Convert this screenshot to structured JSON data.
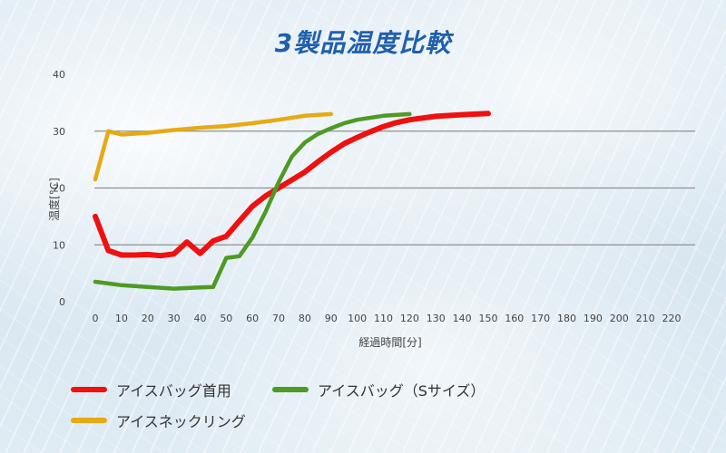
{
  "colors": {
    "title": "#1f5fae",
    "grid": "#8f8f8f",
    "text": "#444444"
  },
  "chart_data": {
    "type": "line",
    "title": "3製品温度比較",
    "xlabel": "経過時間[分]",
    "ylabel": "温度[°C]",
    "xlim": [
      0,
      220
    ],
    "ylim": [
      0,
      40
    ],
    "x_ticks": [
      0,
      10,
      20,
      30,
      40,
      50,
      60,
      70,
      80,
      90,
      100,
      110,
      120,
      130,
      140,
      150,
      160,
      170,
      180,
      190,
      200,
      210,
      220
    ],
    "y_ticks": [
      0,
      10,
      20,
      30,
      40
    ],
    "grid": true,
    "legend_position": "bottom-left",
    "series": [
      {
        "name": "アイスバッグ首用",
        "color": "#f01010",
        "points": [
          [
            0,
            15
          ],
          [
            5,
            9
          ],
          [
            10,
            8.2
          ],
          [
            15,
            8.2
          ],
          [
            20,
            8.3
          ],
          [
            25,
            8.1
          ],
          [
            30,
            8.4
          ],
          [
            35,
            10.5
          ],
          [
            40,
            8.5
          ],
          [
            45,
            10.7
          ],
          [
            50,
            11.5
          ],
          [
            55,
            14.2
          ],
          [
            60,
            16.8
          ],
          [
            65,
            18.6
          ],
          [
            70,
            20
          ],
          [
            75,
            21.4
          ],
          [
            80,
            22.8
          ],
          [
            85,
            24.6
          ],
          [
            90,
            26.3
          ],
          [
            95,
            27.8
          ],
          [
            100,
            28.9
          ],
          [
            105,
            29.9
          ],
          [
            110,
            30.8
          ],
          [
            115,
            31.5
          ],
          [
            120,
            32
          ],
          [
            130,
            32.6
          ],
          [
            140,
            32.9
          ],
          [
            150,
            33.1
          ]
        ]
      },
      {
        "name": "アイスバッグ（Sサイズ）",
        "color": "#4e9a24",
        "points": [
          [
            0,
            3.5
          ],
          [
            10,
            2.9
          ],
          [
            20,
            2.6
          ],
          [
            30,
            2.3
          ],
          [
            40,
            2.5
          ],
          [
            45,
            2.6
          ],
          [
            50,
            7.7
          ],
          [
            55,
            8
          ],
          [
            60,
            11.3
          ],
          [
            65,
            15.8
          ],
          [
            70,
            21
          ],
          [
            75,
            25.5
          ],
          [
            80,
            28
          ],
          [
            85,
            29.5
          ],
          [
            90,
            30.5
          ],
          [
            95,
            31.4
          ],
          [
            100,
            32
          ],
          [
            110,
            32.7
          ],
          [
            120,
            33
          ]
        ]
      },
      {
        "name": "アイスネックリング",
        "color": "#e6aa14",
        "points": [
          [
            0,
            21.5
          ],
          [
            5,
            30
          ],
          [
            10,
            29.4
          ],
          [
            20,
            29.7
          ],
          [
            30,
            30.2
          ],
          [
            40,
            30.6
          ],
          [
            50,
            30.9
          ],
          [
            60,
            31.4
          ],
          [
            70,
            32
          ],
          [
            80,
            32.7
          ],
          [
            90,
            33
          ]
        ]
      }
    ]
  }
}
